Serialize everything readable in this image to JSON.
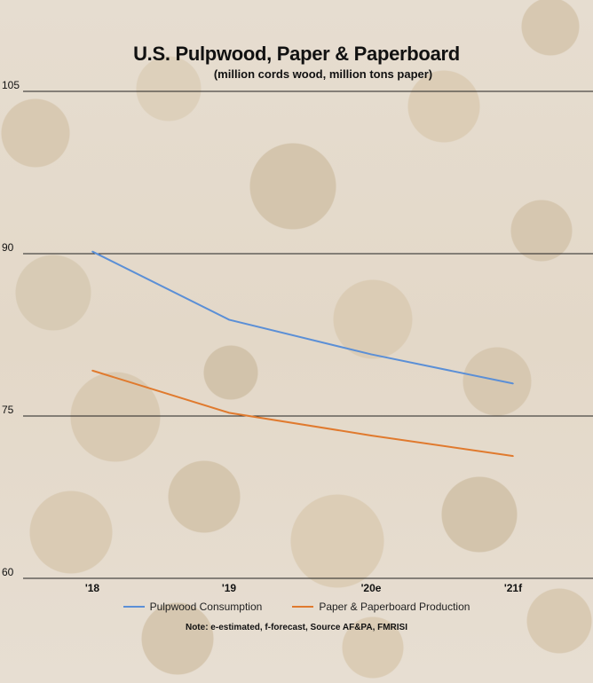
{
  "chart_data": {
    "type": "line",
    "title": "U.S. Pulpwood, Paper & Paperboard",
    "subtitle": "(million cords wood, million tons paper)",
    "categories": [
      "'18",
      "'19",
      "'20e",
      "'21f"
    ],
    "series": [
      {
        "name": "Pulpwood Consumption",
        "color": "#5b8fd6",
        "values": [
          90.2,
          83.9,
          80.7,
          78.0
        ]
      },
      {
        "name": "Paper & Paperboard Production",
        "color": "#e07a2e",
        "values": [
          79.2,
          75.3,
          73.2,
          71.3
        ]
      }
    ],
    "ylim": [
      60,
      105
    ],
    "yticks": [
      105,
      90,
      75,
      60
    ],
    "grid": true,
    "legend_position": "bottom",
    "note": "Note: e-estimated, f-forecast, Source AF&PA, FMRISI"
  }
}
